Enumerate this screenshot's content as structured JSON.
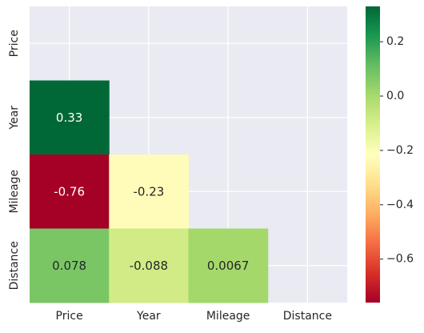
{
  "chart_data": {
    "type": "heatmap",
    "style": "lower-triangle correlation matrix with annotations",
    "rows": [
      "Price",
      "Year",
      "Mileage",
      "Distance"
    ],
    "columns": [
      "Price",
      "Year",
      "Mileage",
      "Distance"
    ],
    "cells": [
      {
        "row": "Year",
        "col": "Price",
        "value": 0.33,
        "label": "0.33"
      },
      {
        "row": "Mileage",
        "col": "Price",
        "value": -0.76,
        "label": "-0.76"
      },
      {
        "row": "Mileage",
        "col": "Year",
        "value": -0.23,
        "label": "-0.23"
      },
      {
        "row": "Distance",
        "col": "Price",
        "value": 0.078,
        "label": "0.078"
      },
      {
        "row": "Distance",
        "col": "Year",
        "value": -0.088,
        "label": "-0.088"
      },
      {
        "row": "Distance",
        "col": "Mileage",
        "value": 0.0067,
        "label": "0.0067"
      }
    ],
    "masked": "upper triangle including diagonal",
    "colormap": "RdYlGn",
    "vmin": -0.76,
    "vmax": 0.33,
    "colorbar": {
      "ticks": [
        0.2,
        0.0,
        -0.2,
        -0.4,
        -0.6
      ],
      "tick_labels": [
        "0.2",
        "0.0",
        "−0.2",
        "−0.4",
        "−0.6"
      ]
    },
    "grid": true,
    "background_color": "#eaeaf2"
  }
}
